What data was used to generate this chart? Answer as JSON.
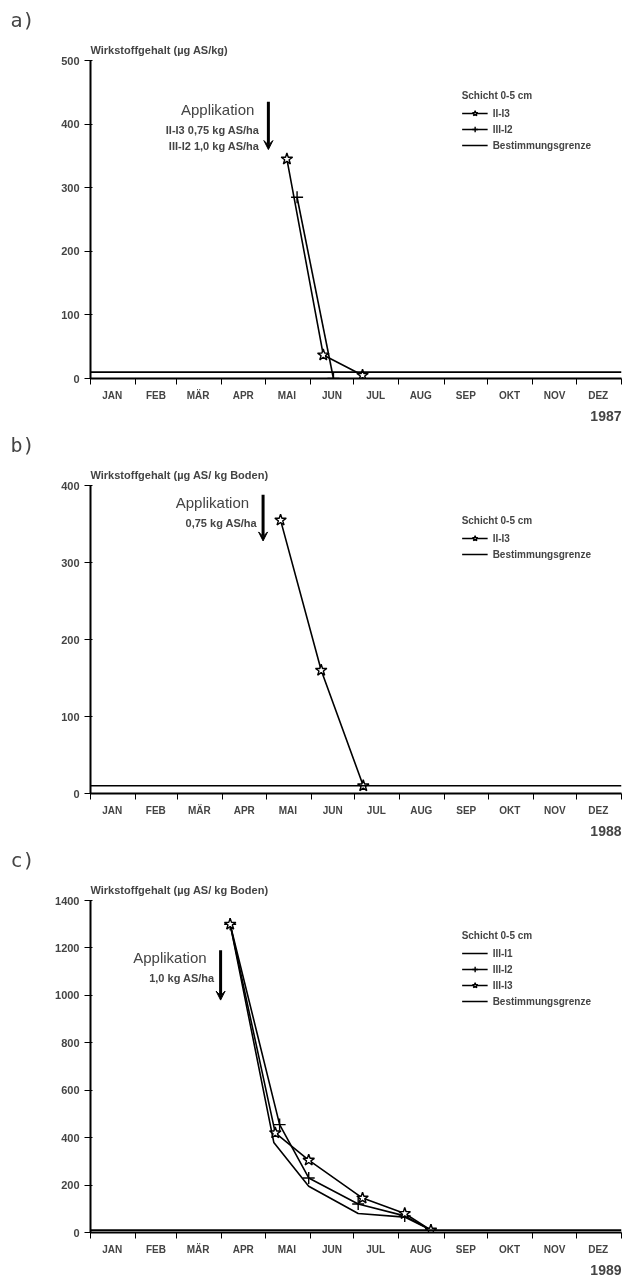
{
  "chart_data": [
    {
      "type": "line",
      "title": "a)",
      "ylabel": "Wirkstoffgehalt (µg AS/kg)",
      "xlabel": "1987",
      "legend_title": "Schicht 0-5 cm",
      "legend": "top right",
      "grid": false,
      "xlim": [
        "1987-01-01",
        "1988-01-01"
      ],
      "ylim": [
        0,
        500
      ],
      "yticks": [
        0,
        100,
        200,
        300,
        400,
        500
      ],
      "xticks": [
        {
          "value": "1987-01-01",
          "label": null
        },
        {
          "value": "1987-01-16",
          "label": "JAN"
        },
        {
          "value": "1987-02-01",
          "label": null
        },
        {
          "value": "1987-02-15",
          "label": "FEB"
        },
        {
          "value": "1987-03-01",
          "label": null
        },
        {
          "value": "1987-03-16",
          "label": "MÄR"
        },
        {
          "value": "1987-04-01",
          "label": null
        },
        {
          "value": "1987-04-16",
          "label": "APR"
        },
        {
          "value": "1987-05-01",
          "label": null
        },
        {
          "value": "1987-05-16",
          "label": "MAI"
        },
        {
          "value": "1987-06-01",
          "label": null
        },
        {
          "value": "1987-06-16",
          "label": "JUN"
        },
        {
          "value": "1987-07-01",
          "label": null
        },
        {
          "value": "1987-07-16",
          "label": "JUL"
        },
        {
          "value": "1987-08-01",
          "label": null
        },
        {
          "value": "1987-08-16",
          "label": "AUG"
        },
        {
          "value": "1987-09-01",
          "label": null
        },
        {
          "value": "1987-09-16",
          "label": "SEP"
        },
        {
          "value": "1987-10-01",
          "label": null
        },
        {
          "value": "1987-10-16",
          "label": "OKT"
        },
        {
          "value": "1987-11-01",
          "label": null
        },
        {
          "value": "1987-11-16",
          "label": "NOV"
        },
        {
          "value": "1987-12-01",
          "label": null
        },
        {
          "value": "1987-12-16",
          "label": "DEZ"
        },
        {
          "value": "1988-01-01",
          "label": null
        }
      ],
      "series": [
        {
          "name": "II-I3",
          "color": "#000000",
          "marker": "star",
          "x": [
            "1987-05-16",
            "1987-06-10",
            "1987-07-07"
          ],
          "values": [
            345,
            37,
            5
          ]
        },
        {
          "name": "III-I2",
          "color": "#000000",
          "marker": "cross",
          "x": [
            "1987-05-23",
            "1987-06-17"
          ],
          "values": [
            285,
            0
          ]
        },
        {
          "name": "Bestimmungsgrenze",
          "color": "#000000",
          "marker": "none",
          "x": [
            "1987-01-01",
            "1988-01-01"
          ],
          "values": [
            10,
            10
          ]
        }
      ],
      "annotations": [
        "Applikation",
        "II-I3  0,75 kg AS/ha",
        "III-I2  1,0 kg AS/ha"
      ]
    },
    {
      "type": "line",
      "title": "b)",
      "ylabel": "Wirkstoffgehalt (µg AS/ kg Boden)",
      "xlabel": "1988",
      "legend_title": "Schicht 0-5 cm",
      "legend": "top right",
      "grid": false,
      "xlim": [
        "1988-01-01",
        "1989-01-01"
      ],
      "ylim": [
        0,
        400
      ],
      "yticks": [
        0,
        100,
        200,
        300,
        400
      ],
      "xticks": [
        {
          "value": "1988-01-01",
          "label": null
        },
        {
          "value": "1988-01-16",
          "label": "JAN"
        },
        {
          "value": "1988-02-01",
          "label": null
        },
        {
          "value": "1988-02-15",
          "label": "FEB"
        },
        {
          "value": "1988-03-01",
          "label": null
        },
        {
          "value": "1988-03-16",
          "label": "MÄR"
        },
        {
          "value": "1988-04-01",
          "label": null
        },
        {
          "value": "1988-04-16",
          "label": "APR"
        },
        {
          "value": "1988-05-01",
          "label": null
        },
        {
          "value": "1988-05-16",
          "label": "MAI"
        },
        {
          "value": "1988-06-01",
          "label": null
        },
        {
          "value": "1988-06-16",
          "label": "JUN"
        },
        {
          "value": "1988-07-01",
          "label": null
        },
        {
          "value": "1988-07-16",
          "label": "JUL"
        },
        {
          "value": "1988-08-01",
          "label": null
        },
        {
          "value": "1988-08-16",
          "label": "AUG"
        },
        {
          "value": "1988-09-01",
          "label": null
        },
        {
          "value": "1988-09-16",
          "label": "SEP"
        },
        {
          "value": "1988-10-01",
          "label": null
        },
        {
          "value": "1988-10-16",
          "label": "OKT"
        },
        {
          "value": "1988-11-01",
          "label": null
        },
        {
          "value": "1988-11-16",
          "label": "NOV"
        },
        {
          "value": "1988-12-01",
          "label": null
        },
        {
          "value": "1988-12-16",
          "label": "DEZ"
        },
        {
          "value": "1989-01-01",
          "label": null
        }
      ],
      "series": [
        {
          "name": "II-I3",
          "color": "#000000",
          "marker": "star",
          "x": [
            "1988-05-11",
            "1988-06-08",
            "1988-07-07"
          ],
          "values": [
            355,
            160,
            10
          ]
        },
        {
          "name": "Bestimmungsgrenze",
          "color": "#000000",
          "marker": "none",
          "x": [
            "1988-01-01",
            "1989-01-01"
          ],
          "values": [
            10,
            10
          ]
        }
      ],
      "annotations": [
        "Applikation",
        "0,75 kg AS/ha"
      ]
    },
    {
      "type": "line",
      "title": "c)",
      "ylabel": "Wirkstoffgehalt (µg AS/ kg Boden)",
      "xlabel": "1989",
      "legend_title": "Schicht 0-5 cm",
      "legend": "top right",
      "grid": false,
      "xlim": [
        "1989-01-01",
        "1990-01-01"
      ],
      "ylim": [
        0,
        1400
      ],
      "yticks": [
        0,
        200,
        400,
        600,
        800,
        1000,
        1200,
        1400
      ],
      "xticks": [
        {
          "value": "1989-01-01",
          "label": null
        },
        {
          "value": "1989-01-16",
          "label": "JAN"
        },
        {
          "value": "1989-02-01",
          "label": null
        },
        {
          "value": "1989-02-15",
          "label": "FEB"
        },
        {
          "value": "1989-03-01",
          "label": null
        },
        {
          "value": "1989-03-16",
          "label": "MÄR"
        },
        {
          "value": "1989-04-01",
          "label": null
        },
        {
          "value": "1989-04-16",
          "label": "APR"
        },
        {
          "value": "1989-05-01",
          "label": null
        },
        {
          "value": "1989-05-16",
          "label": "MAI"
        },
        {
          "value": "1989-06-01",
          "label": null
        },
        {
          "value": "1989-06-16",
          "label": "JUN"
        },
        {
          "value": "1989-07-01",
          "label": null
        },
        {
          "value": "1989-07-16",
          "label": "JUL"
        },
        {
          "value": "1989-08-01",
          "label": null
        },
        {
          "value": "1989-08-16",
          "label": "AUG"
        },
        {
          "value": "1989-09-01",
          "label": null
        },
        {
          "value": "1989-09-16",
          "label": "SEP"
        },
        {
          "value": "1989-10-01",
          "label": null
        },
        {
          "value": "1989-10-16",
          "label": "OKT"
        },
        {
          "value": "1989-11-01",
          "label": null
        },
        {
          "value": "1989-11-16",
          "label": "NOV"
        },
        {
          "value": "1989-12-01",
          "label": null
        },
        {
          "value": "1989-12-16",
          "label": "DEZ"
        },
        {
          "value": "1990-01-01",
          "label": null
        }
      ],
      "series": [
        {
          "name": "III-I1",
          "color": "#000000",
          "marker": "none",
          "x": [
            "1989-04-07",
            "1989-05-07",
            "1989-05-31",
            "1989-07-04",
            "1989-08-05",
            "1989-08-23"
          ],
          "values": [
            1300,
            380,
            195,
            80,
            65,
            10
          ]
        },
        {
          "name": "III-I2",
          "color": "#000000",
          "marker": "cross",
          "x": [
            "1989-04-07",
            "1989-05-11",
            "1989-05-31",
            "1989-07-04",
            "1989-08-05",
            "1989-08-23"
          ],
          "values": [
            1300,
            455,
            230,
            120,
            70,
            10
          ]
        },
        {
          "name": "III-I3",
          "color": "#000000",
          "marker": "star",
          "x": [
            "1989-04-07",
            "1989-05-08",
            "1989-05-31",
            "1989-07-07",
            "1989-08-05",
            "1989-08-23"
          ],
          "values": [
            1300,
            420,
            305,
            145,
            80,
            10
          ]
        },
        {
          "name": "Bestimmungsgrenze",
          "color": "#000000",
          "marker": "none",
          "x": [
            "1989-01-01",
            "1990-01-01"
          ],
          "values": [
            10,
            10
          ]
        }
      ],
      "annotations": [
        "Applikation",
        "1,0 kg AS/ha"
      ]
    }
  ]
}
